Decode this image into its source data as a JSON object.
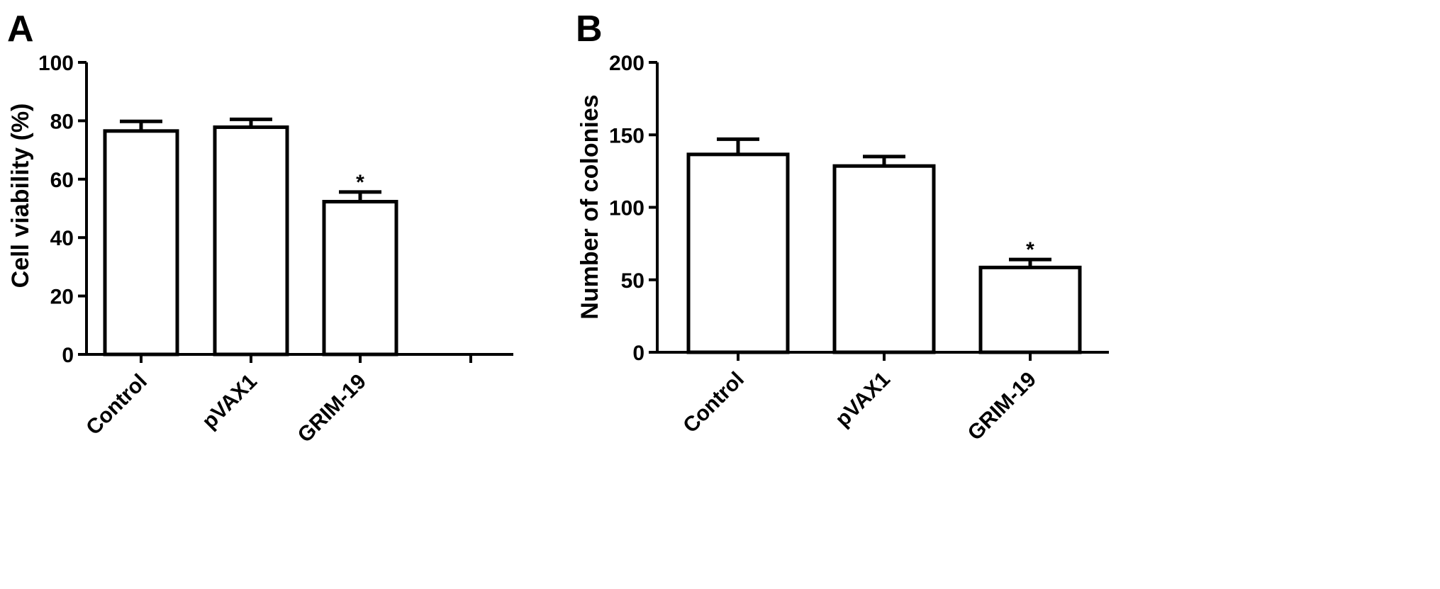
{
  "chart_data": [
    {
      "type": "bar",
      "panel": "A",
      "categories": [
        "Control",
        "pVAX1",
        "GRIM-19",
        ""
      ],
      "values": [
        76.5,
        77.8,
        52.3,
        null
      ],
      "errors": [
        3.3,
        2.7,
        3.3,
        null
      ],
      "annotations": [
        "",
        "",
        "*",
        ""
      ],
      "ylabel": "Cell viability (%)",
      "ylim": [
        0,
        100
      ],
      "yticks": [
        0,
        20,
        40,
        60,
        80,
        100
      ],
      "grid": false,
      "legend": "none"
    },
    {
      "type": "bar",
      "panel": "B",
      "categories": [
        "Control",
        "pVAX1",
        "GRIM-19"
      ],
      "values": [
        136.5,
        128.5,
        58.5
      ],
      "errors": [
        10.5,
        6.5,
        5.5
      ],
      "annotations": [
        "",
        "",
        "*"
      ],
      "ylabel": "Number of colonies",
      "ylim": [
        0,
        200
      ],
      "yticks": [
        0,
        50,
        100,
        150,
        200
      ],
      "grid": false,
      "legend": "none"
    }
  ]
}
